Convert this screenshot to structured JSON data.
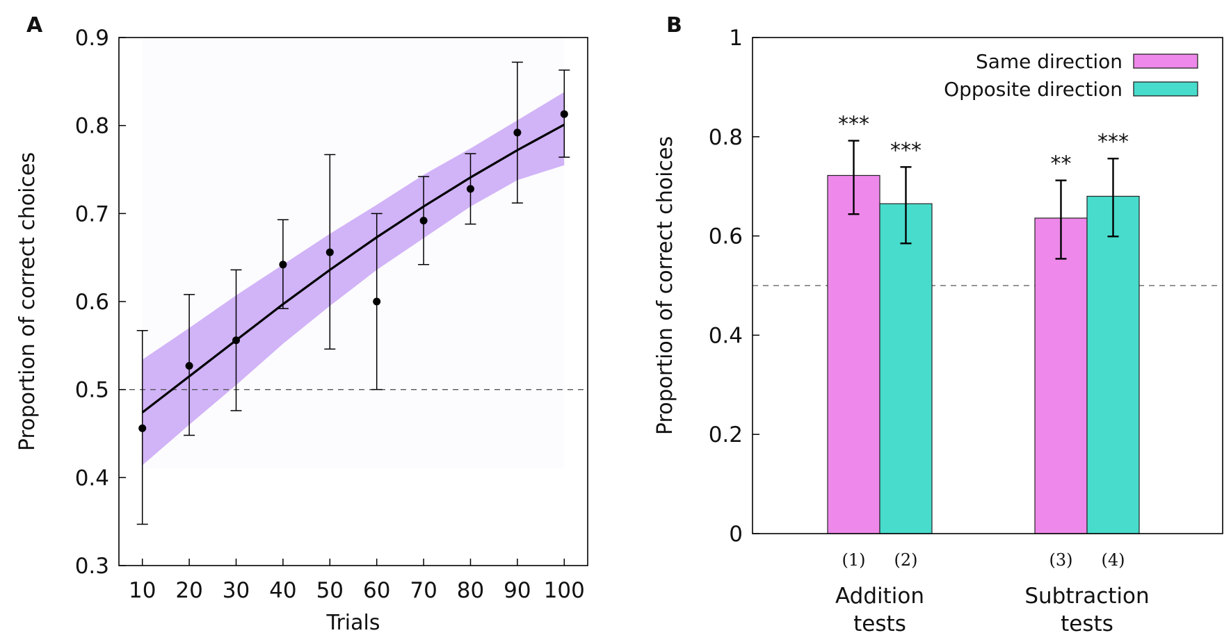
{
  "chart_data": [
    {
      "panel": "A",
      "type": "scatter",
      "xlabel": "Trials",
      "ylabel": "Proportion of correct choices",
      "xlim": [
        5,
        105
      ],
      "ylim": [
        0.3,
        0.9
      ],
      "x_ticks": [
        10,
        20,
        30,
        40,
        50,
        60,
        70,
        80,
        90,
        100
      ],
      "y_ticks": [
        "0.3",
        "0.4",
        "0.5",
        "0.6",
        "0.7",
        "0.8",
        "0.9"
      ],
      "reference_line": 0.5,
      "points": [
        {
          "x": 10,
          "y": 0.456,
          "err_low": 0.347,
          "err_high": 0.567
        },
        {
          "x": 20,
          "y": 0.527,
          "err_low": 0.448,
          "err_high": 0.608
        },
        {
          "x": 30,
          "y": 0.556,
          "err_low": 0.476,
          "err_high": 0.636
        },
        {
          "x": 40,
          "y": 0.642,
          "err_low": 0.592,
          "err_high": 0.693
        },
        {
          "x": 50,
          "y": 0.656,
          "err_low": 0.546,
          "err_high": 0.767
        },
        {
          "x": 60,
          "y": 0.6,
          "err_low": 0.5,
          "err_high": 0.7
        },
        {
          "x": 70,
          "y": 0.692,
          "err_low": 0.642,
          "err_high": 0.742
        },
        {
          "x": 80,
          "y": 0.728,
          "err_low": 0.688,
          "err_high": 0.768
        },
        {
          "x": 90,
          "y": 0.792,
          "err_low": 0.712,
          "err_high": 0.872
        },
        {
          "x": 100,
          "y": 0.813,
          "err_low": 0.764,
          "err_high": 0.863
        }
      ],
      "fit_curve": {
        "x": [
          10,
          20,
          30,
          40,
          50,
          60,
          70,
          80,
          90,
          100
        ],
        "y": [
          0.474,
          0.515,
          0.556,
          0.597,
          0.636,
          0.673,
          0.708,
          0.741,
          0.772,
          0.801
        ],
        "band_low": [
          0.414,
          0.46,
          0.505,
          0.552,
          0.595,
          0.636,
          0.672,
          0.708,
          0.738,
          0.755
        ],
        "band_high": [
          0.534,
          0.57,
          0.607,
          0.642,
          0.677,
          0.71,
          0.744,
          0.774,
          0.806,
          0.838
        ]
      },
      "colors": {
        "band": "#c9a6f6",
        "curve": "#000000",
        "points": "#000000",
        "plot_bg": "#fcfbfe"
      }
    },
    {
      "panel": "B",
      "type": "bar",
      "ylabel": "Proportion of correct choices",
      "ylim": [
        0,
        1
      ],
      "y_ticks": [
        "0",
        "0.2",
        "0.4",
        "0.6",
        "0.8",
        "1"
      ],
      "reference_line": 0.5,
      "groups": [
        {
          "label_line1": "Addition",
          "label_line2": "tests"
        },
        {
          "label_line1": "Subtraction",
          "label_line2": "tests"
        }
      ],
      "series": [
        {
          "name": "Same direction",
          "color": "#ee88ea"
        },
        {
          "name": "Opposite direction",
          "color": "#48dccc"
        }
      ],
      "bars": [
        {
          "group": 0,
          "series": 0,
          "index_label": "(1)",
          "value": 0.722,
          "err_low": 0.644,
          "err_high": 0.792,
          "significance": "***"
        },
        {
          "group": 0,
          "series": 1,
          "index_label": "(2)",
          "value": 0.665,
          "err_low": 0.585,
          "err_high": 0.739,
          "significance": "***"
        },
        {
          "group": 1,
          "series": 0,
          "index_label": "(3)",
          "value": 0.636,
          "err_low": 0.554,
          "err_high": 0.712,
          "significance": "**"
        },
        {
          "group": 1,
          "series": 1,
          "index_label": "(4)",
          "value": 0.68,
          "err_low": 0.599,
          "err_high": 0.756,
          "significance": "***"
        }
      ]
    }
  ]
}
